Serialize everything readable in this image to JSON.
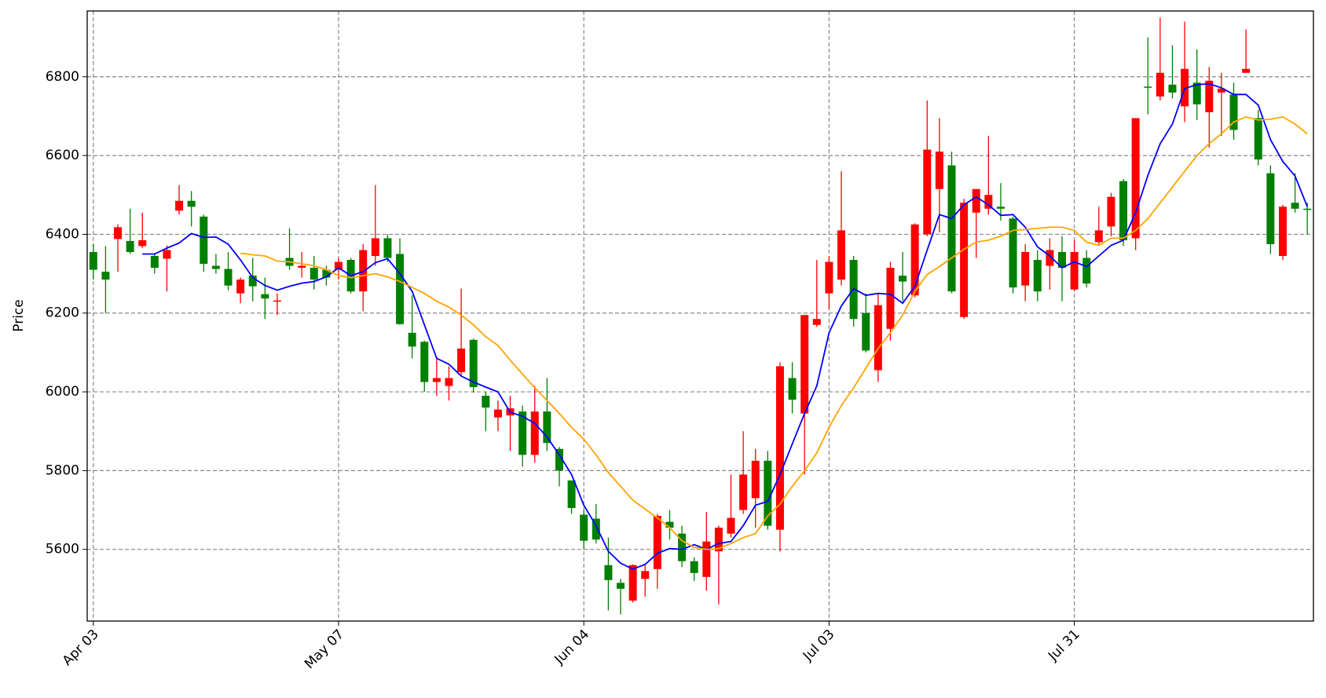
{
  "chart_data": {
    "type": "candlestick",
    "y_label": "Price",
    "categories": [
      "Apr 03",
      null,
      null,
      null,
      null,
      null,
      null,
      null,
      null,
      null,
      null,
      null,
      null,
      null,
      null,
      null,
      null,
      null,
      null,
      null,
      "May 07",
      null,
      null,
      null,
      null,
      null,
      null,
      null,
      null,
      null,
      null,
      null,
      null,
      null,
      null,
      null,
      null,
      null,
      null,
      null,
      "Jun 04",
      null,
      null,
      null,
      null,
      null,
      null,
      null,
      null,
      null,
      null,
      null,
      null,
      null,
      null,
      null,
      null,
      null,
      null,
      null,
      "Jul 03",
      null,
      null,
      null,
      null,
      null,
      null,
      null,
      null,
      null,
      null,
      null,
      null,
      null,
      null,
      null,
      null,
      null,
      null,
      null,
      "Jul 31",
      null,
      null,
      null,
      null,
      null,
      null,
      null,
      null,
      null,
      null,
      null,
      null,
      null,
      null,
      null,
      null,
      null,
      null,
      null
    ],
    "open": [
      6355,
      6305,
      6388,
      6383,
      6370,
      6345,
      6338,
      6460,
      6485,
      6445,
      6320,
      6312,
      6250,
      6295,
      6248,
      6230,
      6340,
      6315,
      6315,
      6310,
      6310,
      6335,
      6255,
      6345,
      6390,
      6350,
      6150,
      6127,
      6025,
      6015,
      6050,
      6132,
      5990,
      5935,
      5940,
      5950,
      5840,
      5950,
      5855,
      5775,
      5688,
      5678,
      5560,
      5515,
      5470,
      5525,
      5550,
      5670,
      5640,
      5570,
      5530,
      5595,
      5640,
      5700,
      5730,
      5825,
      5650,
      6035,
      5945,
      6170,
      6250,
      6285,
      6335,
      6200,
      6055,
      6160,
      6295,
      6245,
      6400,
      6515,
      6575,
      6190,
      6455,
      6465,
      6470,
      6440,
      6270,
      6335,
      6320,
      6355,
      6260,
      6340,
      6380,
      6420,
      6535,
      6390,
      6775,
      6750,
      6780,
      6725,
      6785,
      6710,
      6760,
      6755,
      6810,
      6695,
      6555,
      6345,
      6480,
      6465
    ],
    "high": [
      6375,
      6370,
      6425,
      6465,
      6455,
      6352,
      6372,
      6525,
      6510,
      6450,
      6350,
      6355,
      6290,
      6340,
      6290,
      6250,
      6415,
      6355,
      6345,
      6320,
      6340,
      6340,
      6375,
      6525,
      6400,
      6390,
      6245,
      6130,
      6090,
      6065,
      6262,
      6135,
      6000,
      5978,
      5990,
      5965,
      6015,
      6035,
      5860,
      5775,
      5700,
      5715,
      5630,
      5525,
      5562,
      5560,
      5690,
      5700,
      5660,
      5580,
      5695,
      5660,
      5790,
      5900,
      5855,
      5850,
      6075,
      6075,
      6195,
      6335,
      6345,
      6560,
      6345,
      6250,
      6250,
      6330,
      6355,
      6428,
      6740,
      6695,
      6610,
      6490,
      6515,
      6650,
      6530,
      6445,
      6375,
      6360,
      6390,
      6395,
      6385,
      6360,
      6470,
      6505,
      6540,
      6695,
      6900,
      6950,
      6880,
      6940,
      6870,
      6825,
      6810,
      6785,
      6920,
      6715,
      6575,
      6475,
      6555,
      6480
    ],
    "low": [
      6285,
      6200,
      6305,
      6350,
      6365,
      6300,
      6255,
      6450,
      6420,
      6305,
      6300,
      6258,
      6225,
      6230,
      6185,
      6195,
      6310,
      6290,
      6260,
      6270,
      6285,
      6250,
      6205,
      6320,
      6330,
      6170,
      6085,
      6000,
      5990,
      5978,
      6040,
      5998,
      5900,
      5900,
      5850,
      5810,
      5820,
      5850,
      5760,
      5690,
      5600,
      5615,
      5445,
      5435,
      5465,
      5480,
      5500,
      5625,
      5555,
      5520,
      5495,
      5460,
      5630,
      5690,
      5655,
      5650,
      5595,
      5945,
      5790,
      6165,
      6210,
      6270,
      6165,
      6100,
      6025,
      6130,
      6230,
      6240,
      6395,
      6405,
      6250,
      6185,
      6340,
      6450,
      6435,
      6250,
      6230,
      6230,
      6260,
      6230,
      6255,
      6265,
      6375,
      6395,
      6370,
      6360,
      6705,
      6740,
      6745,
      6685,
      6690,
      6620,
      6650,
      6640,
      6810,
      6575,
      6350,
      6335,
      6455,
      6400
    ],
    "close": [
      6310,
      6285,
      6418,
      6355,
      6385,
      6315,
      6360,
      6485,
      6470,
      6325,
      6312,
      6270,
      6285,
      6268,
      6237,
      6232,
      6320,
      6320,
      6285,
      6290,
      6330,
      6255,
      6360,
      6390,
      6340,
      6172,
      6115,
      6025,
      6035,
      6035,
      6110,
      6012,
      5960,
      5955,
      5958,
      5840,
      5950,
      5870,
      5800,
      5705,
      5622,
      5625,
      5522,
      5500,
      5560,
      5545,
      5685,
      5655,
      5570,
      5540,
      5620,
      5655,
      5680,
      5790,
      5825,
      5660,
      6065,
      5980,
      6195,
      6185,
      6330,
      6410,
      6185,
      6105,
      6220,
      6315,
      6280,
      6425,
      6615,
      6610,
      6255,
      6480,
      6515,
      6500,
      6465,
      6265,
      6355,
      6255,
      6360,
      6315,
      6355,
      6275,
      6410,
      6495,
      6385,
      6695,
      6772,
      6810,
      6760,
      6820,
      6730,
      6790,
      6770,
      6665,
      6820,
      6590,
      6375,
      6470,
      6465,
      6462
    ],
    "up_color": "red",
    "down_color": "green",
    "lines": [
      {
        "color": "blue",
        "values": [
          null,
          null,
          null,
          null,
          6350,
          6350,
          6365,
          6378,
          6402,
          6392,
          6393,
          6375,
          6335,
          6290,
          6270,
          6258,
          6268,
          6276,
          6280,
          6292,
          6315,
          6295,
          6305,
          6328,
          6338,
          6300,
          6255,
          6170,
          6085,
          6070,
          6040,
          6025,
          6012,
          6000,
          5948,
          5938,
          5920,
          5885,
          5840,
          5790,
          5712,
          5660,
          5595,
          5565,
          5550,
          5562,
          5590,
          5602,
          5600,
          5612,
          5600,
          5615,
          5620,
          5660,
          5712,
          5722,
          5790,
          5868,
          5945,
          6015,
          6150,
          6218,
          6262,
          6245,
          6250,
          6248,
          6225,
          6268,
          6360,
          6450,
          6440,
          6475,
          6495,
          6475,
          6448,
          6450,
          6418,
          6368,
          6345,
          6315,
          6330,
          6318,
          6345,
          6372,
          6385,
          6455,
          6550,
          6630,
          6680,
          6770,
          6780,
          6782,
          6772,
          6755,
          6755,
          6728,
          6640,
          6585,
          6548,
          6470
        ]
      },
      {
        "color": "orange",
        "values": [
          null,
          null,
          null,
          null,
          null,
          null,
          null,
          null,
          null,
          null,
          null,
          null,
          6352,
          6348,
          6345,
          6332,
          6330,
          6325,
          6320,
          6310,
          6295,
          6290,
          6295,
          6300,
          6292,
          6280,
          6265,
          6250,
          6230,
          6215,
          6195,
          6170,
          6140,
          6118,
          6080,
          6045,
          6010,
          5978,
          5945,
          5910,
          5880,
          5840,
          5795,
          5760,
          5725,
          5702,
          5680,
          5655,
          5622,
          5605,
          5600,
          5602,
          5615,
          5630,
          5640,
          5685,
          5715,
          5760,
          5800,
          5845,
          5910,
          5965,
          6010,
          6060,
          6110,
          6150,
          6195,
          6255,
          6298,
          6318,
          6340,
          6362,
          6380,
          6385,
          6395,
          6410,
          6412,
          6415,
          6418,
          6418,
          6410,
          6380,
          6372,
          6390,
          6390,
          6410,
          6440,
          6480,
          6520,
          6560,
          6600,
          6630,
          6655,
          6685,
          6698,
          6690,
          6692,
          6698,
          6680,
          6655
        ]
      }
    ],
    "xlim": [
      -0.5,
      99.5
    ],
    "ylim": [
      5418,
      6967
    ],
    "yticks": [
      5600,
      5800,
      6000,
      6200,
      6400,
      6600,
      6800
    ],
    "grid": true
  }
}
